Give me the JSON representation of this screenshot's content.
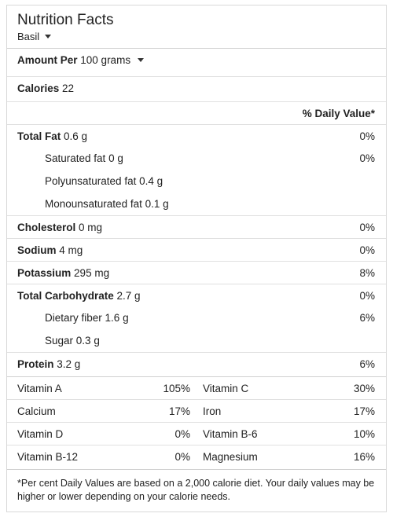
{
  "header": {
    "title": "Nutrition Facts",
    "food": "Basil"
  },
  "serving": {
    "amount_label": "Amount Per",
    "amount_value": "100 grams"
  },
  "calories": {
    "label": "Calories",
    "value": "22"
  },
  "daily_value_header": "% Daily Value*",
  "nutrients": [
    {
      "name": "Total Fat",
      "amount": "0.6 g",
      "pct": "0%"
    },
    {
      "name": "Saturated fat",
      "amount": "0 g",
      "pct": "0%"
    },
    {
      "name": "Polyunsaturated fat",
      "amount": "0.4 g",
      "pct": ""
    },
    {
      "name": "Monounsaturated fat",
      "amount": "0.1 g",
      "pct": ""
    },
    {
      "name": "Cholesterol",
      "amount": "0 mg",
      "pct": "0%"
    },
    {
      "name": "Sodium",
      "amount": "4 mg",
      "pct": "0%"
    },
    {
      "name": "Potassium",
      "amount": "295 mg",
      "pct": "8%"
    },
    {
      "name": "Total Carbohydrate",
      "amount": "2.7 g",
      "pct": "0%"
    },
    {
      "name": "Dietary fiber",
      "amount": "1.6 g",
      "pct": "6%"
    },
    {
      "name": "Sugar",
      "amount": "0.3 g",
      "pct": ""
    },
    {
      "name": "Protein",
      "amount": "3.2 g",
      "pct": "6%"
    }
  ],
  "vitamins": [
    {
      "left_name": "Vitamin A",
      "left_pct": "105%",
      "right_name": "Vitamin C",
      "right_pct": "30%"
    },
    {
      "left_name": "Calcium",
      "left_pct": "17%",
      "right_name": "Iron",
      "right_pct": "17%"
    },
    {
      "left_name": "Vitamin D",
      "left_pct": "0%",
      "right_name": "Vitamin B-6",
      "right_pct": "10%"
    },
    {
      "left_name": "Vitamin B-12",
      "left_pct": "0%",
      "right_name": "Magnesium",
      "right_pct": "16%"
    }
  ],
  "footnote": "*Per cent Daily Values are based on a 2,000 calorie diet. Your daily values may be higher or lower depending on your calorie needs."
}
